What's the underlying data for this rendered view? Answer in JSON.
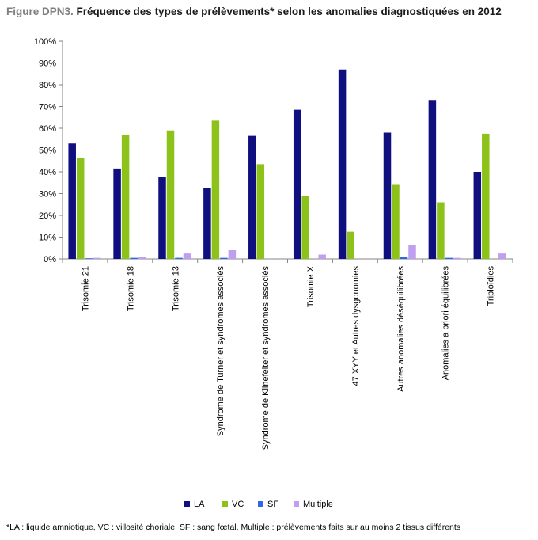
{
  "title": {
    "prefix": "Figure DPN3.",
    "text": "Fréquence des types de prélèvements* selon les anomalies diagnostiquées en 2012"
  },
  "footnote": "*LA : liquide amniotique, VC : villosité choriale, SF : sang fœtal, Multiple : prélèvements faits sur au moins 2 tissus différents",
  "chart_data": {
    "type": "bar",
    "title": "Fréquence des types de prélèvements* selon les anomalies diagnostiquées en 2012",
    "xlabel": "",
    "ylabel": "",
    "ylim": [
      0,
      100
    ],
    "yticks": [
      "0%",
      "10%",
      "20%",
      "30%",
      "40%",
      "50%",
      "60%",
      "70%",
      "80%",
      "90%",
      "100%"
    ],
    "grid": false,
    "legend_position": "bottom",
    "categories": [
      "Trisomie 21",
      "Trisomie 18",
      "Trisomie 13",
      "Syndrome de Turner et syndromes associés",
      "Syndrome de Klinefelter et syndromes associés",
      "Trisomie X",
      "47 XYY et Autres dysgonomies",
      "Autres anomalies déséquilibrées",
      "Anomalies a priori équilibrées",
      "Triploïdies"
    ],
    "series": [
      {
        "name": "LA",
        "color": "#0f0f7f",
        "values": [
          53,
          41.5,
          37.5,
          32.5,
          56.5,
          68.5,
          87,
          58,
          73,
          40
        ]
      },
      {
        "name": "VC",
        "color": "#8dc21a",
        "values": [
          46.5,
          57,
          59,
          63.5,
          43.5,
          29,
          12.5,
          34,
          26,
          57.5
        ]
      },
      {
        "name": "SF",
        "color": "#3366e6",
        "values": [
          0.3,
          0.5,
          0.5,
          0.5,
          0,
          0,
          0,
          1,
          0.5,
          0
        ]
      },
      {
        "name": "Multiple",
        "color": "#c09ef0",
        "values": [
          0.5,
          1,
          2.5,
          4,
          0,
          2,
          0,
          6.5,
          0.5,
          2.5
        ]
      }
    ]
  }
}
